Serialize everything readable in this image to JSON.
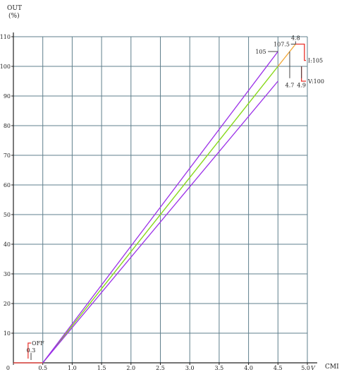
{
  "chart_data": {
    "type": "line",
    "ylabel_line1": "OUT",
    "ylabel_line2": "(%)",
    "xlabel": "CMI",
    "x_unit": "V",
    "xlim": [
      0,
      5.0
    ],
    "ylim": [
      0,
      110
    ],
    "x_ticks": [
      {
        "v": 0,
        "label": "0"
      },
      {
        "v": 0.5,
        "label": "0.5"
      },
      {
        "v": 1.0,
        "label": "1.0"
      },
      {
        "v": 1.5,
        "label": "1.5"
      },
      {
        "v": 2.0,
        "label": "2.0"
      },
      {
        "v": 2.5,
        "label": "2.5"
      },
      {
        "v": 3.0,
        "label": "3.0"
      },
      {
        "v": 3.5,
        "label": "3.5"
      },
      {
        "v": 4.0,
        "label": "4.0"
      },
      {
        "v": 4.5,
        "label": "4.5"
      },
      {
        "v": 5.0,
        "label": "5.0"
      }
    ],
    "y_ticks": [
      {
        "v": 10,
        "label": "10"
      },
      {
        "v": 20,
        "label": "20"
      },
      {
        "v": 30,
        "label": "30"
      },
      {
        "v": 40,
        "label": "40"
      },
      {
        "v": 50,
        "label": "50"
      },
      {
        "v": 60,
        "label": "60"
      },
      {
        "v": 70,
        "label": "70"
      },
      {
        "v": 80,
        "label": "80"
      },
      {
        "v": 90,
        "label": "90"
      },
      {
        "v": 100,
        "label": "100"
      },
      {
        "v": 110,
        "label": "110"
      }
    ],
    "grid": true,
    "colors": {
      "grid": "#5f7f8c",
      "nominal": "#88d81a",
      "tolerance": "#9b30e8",
      "limit": "#f2a93b",
      "red": "#e8302a",
      "leader": "#444444"
    },
    "series": [
      {
        "key": "nominal",
        "points": [
          [
            0.5,
            0
          ],
          [
            4.5,
            100
          ],
          [
            4.7,
            105
          ],
          [
            4.8,
            107.5
          ]
        ]
      },
      {
        "key": "upper",
        "points": [
          [
            0.5,
            0
          ],
          [
            4.5,
            105
          ]
        ]
      },
      {
        "key": "lower",
        "points": [
          [
            0.5,
            0
          ],
          [
            4.5,
            95
          ]
        ]
      }
    ],
    "step_lines": [
      {
        "label": "I:105",
        "points": [
          [
            4.8,
            107.5
          ],
          [
            5.0,
            107.5
          ]
        ]
      },
      {
        "label": "V:100",
        "points": [
          [
            4.9,
            100
          ],
          [
            5.0,
            100
          ]
        ]
      }
    ],
    "off_line": {
      "label": "OFF",
      "threshold": 0.3,
      "points": [
        [
          0,
          0
        ],
        [
          0.5,
          0
        ]
      ]
    },
    "annotations": [
      {
        "text": "4.8",
        "x": 4.8,
        "y": 107.5
      },
      {
        "text": "107.5",
        "x": 4.8,
        "y": 107.5
      },
      {
        "text": "105",
        "x": 4.5,
        "y": 105
      },
      {
        "text": "4.7",
        "x": 4.7,
        "y": 100
      },
      {
        "text": "4.9",
        "x": 4.9,
        "y": 100
      },
      {
        "text": "0.3",
        "x": 0.3,
        "y": 0
      }
    ]
  }
}
